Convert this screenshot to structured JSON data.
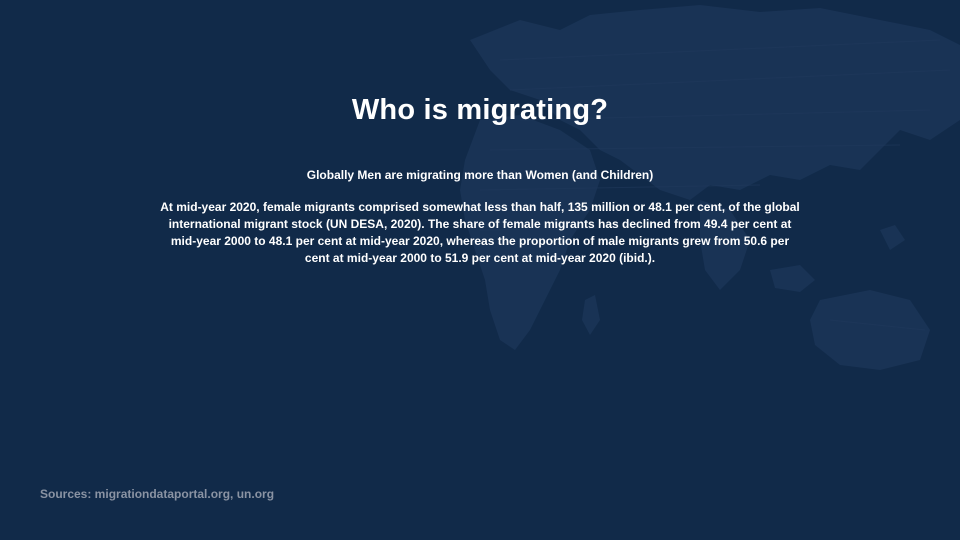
{
  "slide": {
    "title": "Who is migrating?",
    "subtitle": "Globally Men are migrating more than Women (and Children)",
    "body": "At mid-year 2020, female migrants comprised somewhat less than half, 135 million or 48.1 per cent, of the global international migrant stock (UN DESA, 2020). The share of female migrants has declined from 49.4 per cent at mid-year 2000 to 48.1 per cent at mid-year 2020, whereas the proportion of male migrants grew from 50.6 per cent at mid-year 2000 to 51.9 per cent at mid-year 2020 (ibid.).",
    "sources": "Sources: migrationdataportal.org, un.org"
  },
  "colors": {
    "background": "#112a49",
    "map": "#1d3658",
    "text": "#ffffff",
    "sources_text": "#8a93a3"
  }
}
